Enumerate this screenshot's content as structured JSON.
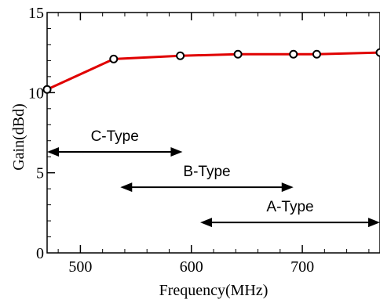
{
  "chart_data": {
    "type": "line",
    "xlabel": "Frequency(MHz)",
    "ylabel": "Gain(dBd)",
    "xlim": [
      470,
      770
    ],
    "ylim": [
      0,
      15
    ],
    "x_ticks": [
      500,
      600,
      700
    ],
    "y_ticks": [
      0,
      5,
      10,
      15
    ],
    "x_tick_labels": [
      "500",
      "600",
      "700"
    ],
    "y_tick_labels": [
      "0",
      "5",
      "10",
      "15"
    ],
    "grid": false,
    "series": [
      {
        "color": "#e00000",
        "marker": "open-circle",
        "x": [
          470,
          530,
          590,
          642,
          692,
          713,
          770
        ],
        "y": [
          10.2,
          12.1,
          12.3,
          12.4,
          12.4,
          12.4,
          12.5
        ]
      }
    ],
    "bands": [
      {
        "label": "C-Type",
        "x_start": 470,
        "x_end": 592,
        "y": 6.3
      },
      {
        "label": "B-Type",
        "x_start": 536,
        "x_end": 692,
        "y": 4.1
      },
      {
        "label": "A-Type",
        "x_start": 608,
        "x_end": 770,
        "y": 1.9
      }
    ]
  }
}
